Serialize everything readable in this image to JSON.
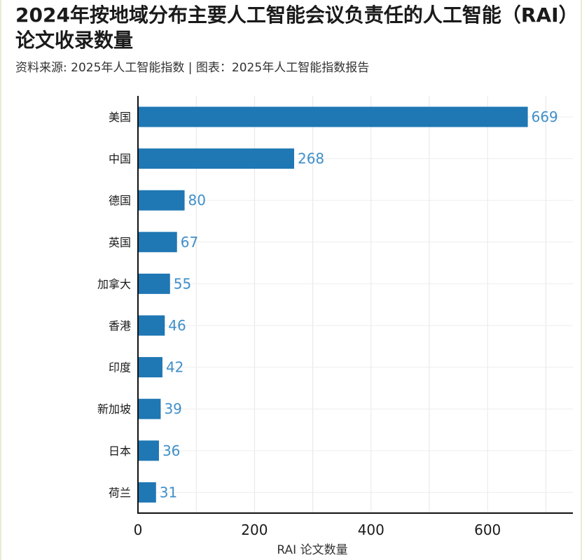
{
  "title": "2024年按地域分布主要人工智能会议负责任的人工智能（RAI）论文收录数量",
  "source": "资料来源: 2025年人工智能指数 | 图表：2025年人工智能指数报告",
  "colors": {
    "bar": "#1f77b4",
    "value_label": "#3f8fc9"
  },
  "chart_data": {
    "type": "bar",
    "orientation": "horizontal",
    "categories": [
      "美国",
      "中国",
      "德国",
      "英国",
      "加拿大",
      "香港",
      "印度",
      "新加坡",
      "日本",
      "荷兰"
    ],
    "values": [
      669,
      268,
      80,
      67,
      55,
      46,
      42,
      39,
      36,
      31
    ],
    "xlabel": "RAI 论文数量",
    "xlim": [
      0,
      750
    ],
    "xticks": [
      0,
      200,
      400,
      600
    ],
    "grid": true
  }
}
